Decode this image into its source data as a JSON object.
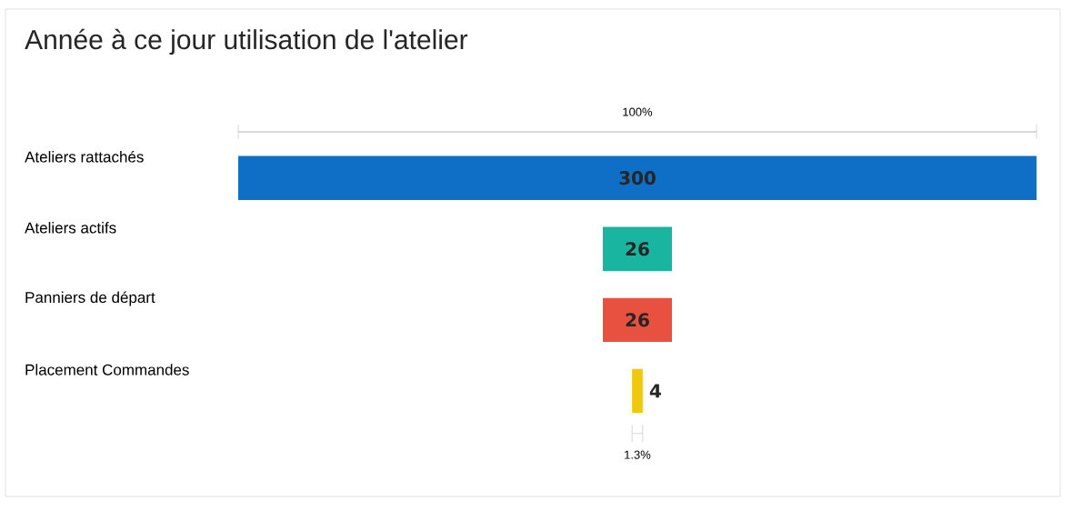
{
  "chart_data": {
    "type": "other",
    "title": "Année à ce jour utilisation de l'atelier",
    "categories": [
      "Ateliers rattachés",
      "Ateliers actifs",
      "Panniers de départ",
      "Placement Commandes"
    ],
    "values": [
      300,
      26,
      26,
      4
    ],
    "colors": [
      "#0f6fc6",
      "#1ab5a0",
      "#e8503f",
      "#f2c80f"
    ],
    "data_labels": true,
    "annotations": [
      "100%",
      "1.3%"
    ]
  }
}
